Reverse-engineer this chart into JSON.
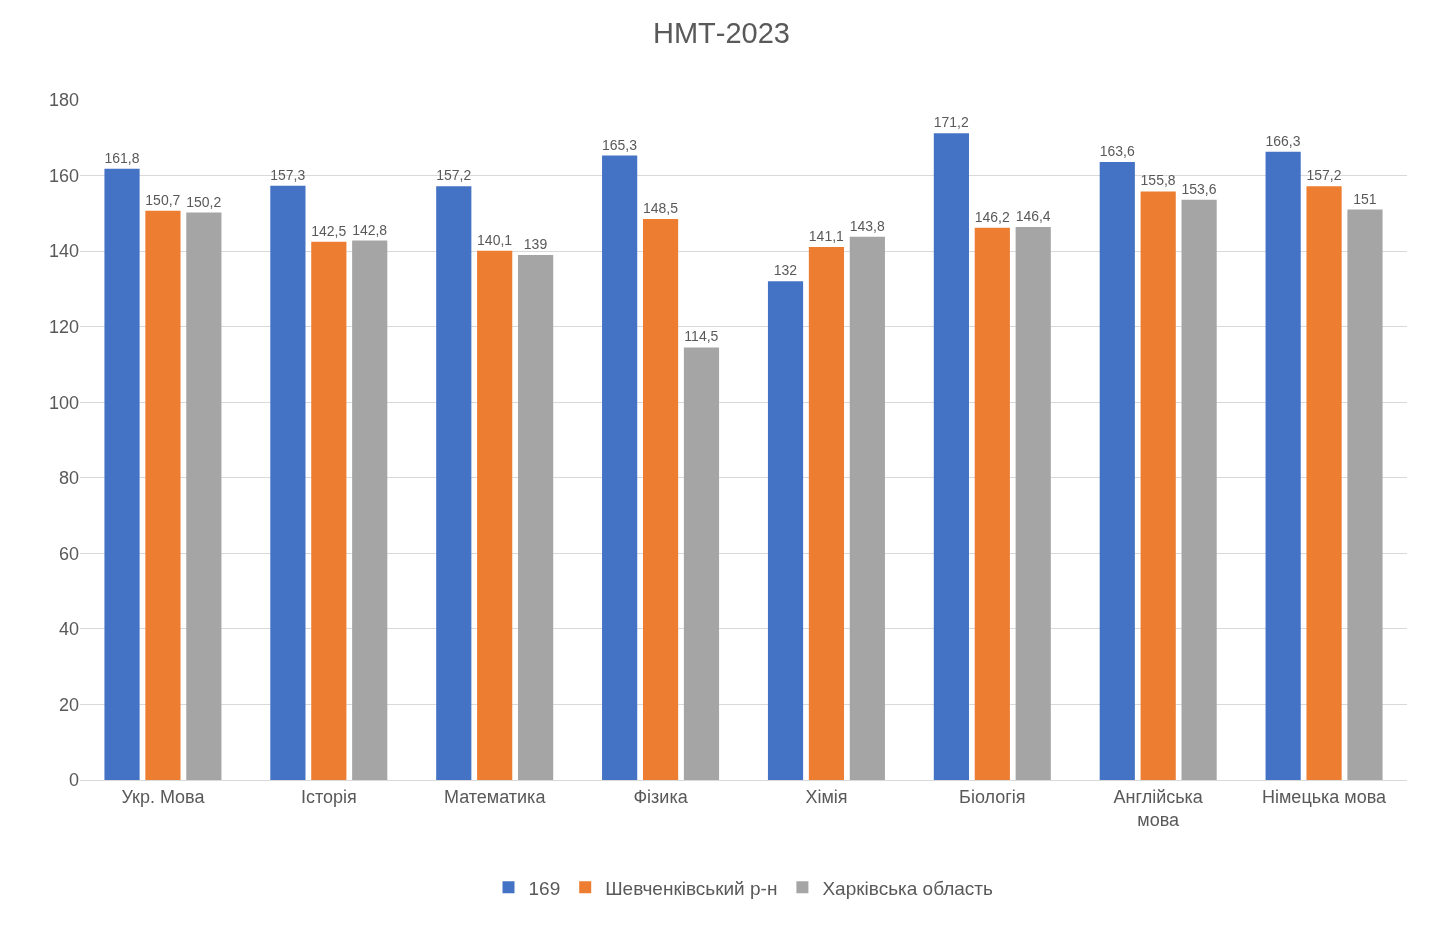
{
  "chart_data": {
    "type": "bar",
    "title": "НМТ-2023",
    "categories": [
      "Укр. Мова",
      "Історія",
      "Математика",
      "Фізика",
      "Хімія",
      "Біологія",
      "Англійська мова",
      "Німецька мова"
    ],
    "series": [
      {
        "name": "169",
        "color": "#4472c4",
        "values": [
          161.8,
          157.3,
          157.2,
          165.3,
          132,
          171.2,
          163.6,
          166.3
        ],
        "value_labels": [
          "161,8",
          "157,3",
          "157,2",
          "165,3",
          "132",
          "171,2",
          "163,6",
          "166,3"
        ]
      },
      {
        "name": "Шевченківський р-н",
        "color": "#ed7d31",
        "values": [
          150.7,
          142.5,
          140.1,
          148.5,
          141.1,
          146.2,
          155.8,
          157.2
        ],
        "value_labels": [
          "150,7",
          "142,5",
          "140,1",
          "148,5",
          "141,1",
          "146,2",
          "155,8",
          "157,2"
        ]
      },
      {
        "name": "Харківська область",
        "color": "#a5a5a5",
        "values": [
          150.2,
          142.8,
          139,
          114.5,
          143.8,
          146.4,
          153.6,
          151
        ],
        "value_labels": [
          "150,2",
          "142,8",
          "139",
          "114,5",
          "143,8",
          "146,4",
          "153,6",
          "151"
        ]
      }
    ],
    "ylim": [
      0,
      180
    ],
    "yticks": [
      0,
      20,
      40,
      60,
      80,
      100,
      120,
      140,
      160,
      180
    ],
    "grid": "y",
    "legend": "bottom"
  }
}
